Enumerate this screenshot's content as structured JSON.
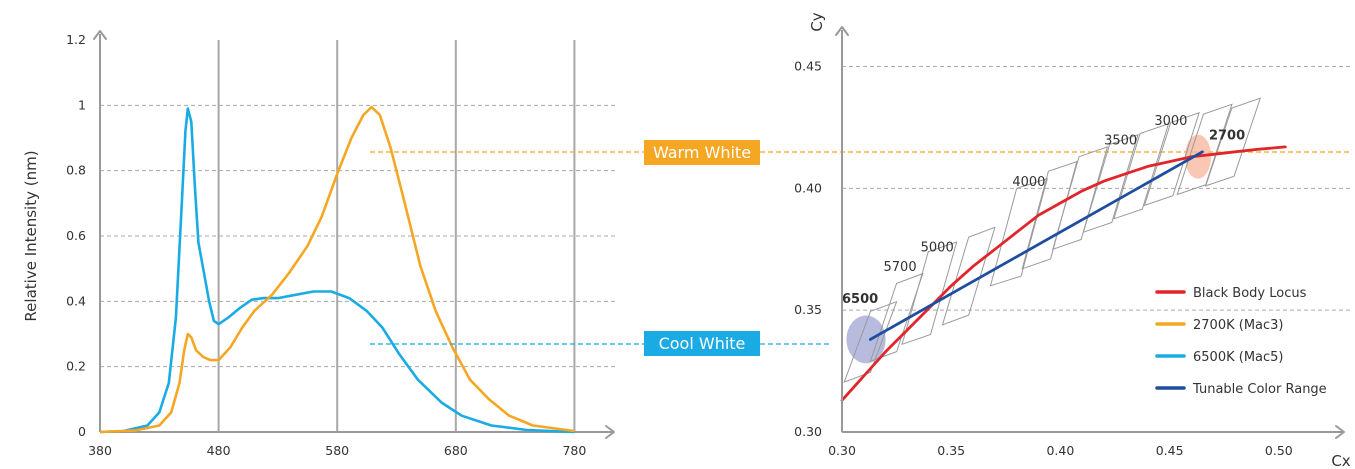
{
  "colors": {
    "warm": "#F5A623",
    "cool": "#1AABE4",
    "blackbody": "#E0262A",
    "tunable": "#1F4EA0",
    "grid": "#AAAAAA",
    "axis": "#999999",
    "warm_ellipse": "#F7B49A",
    "cool_ellipse": "#9FA6D3",
    "warm_label": "#F5A623",
    "cool_label": "#1AABE4"
  },
  "labels": {
    "warm_badge": "Warm White",
    "cool_badge": "Cool White"
  },
  "chart_data": [
    {
      "type": "line",
      "ylabel": "Relative Intensity (nm)",
      "xlabel": "",
      "x_ticks": [
        380,
        480,
        580,
        680,
        780
      ],
      "y_ticks": [
        0,
        0.2,
        0.4,
        0.6,
        0.8,
        1,
        1.2
      ],
      "y_tick_labels": [
        "0",
        "0.2",
        "0.4",
        "0.6",
        "0.8",
        "1",
        "1.2"
      ],
      "xlim": [
        380,
        810
      ],
      "ylim": [
        0,
        1.2
      ],
      "vertical_grid": [
        480,
        580,
        680,
        780
      ],
      "series": [
        {
          "color_key": "cool",
          "points": [
            [
              380,
              0
            ],
            [
              400,
              0.003
            ],
            [
              420,
              0.02
            ],
            [
              430,
              0.06
            ],
            [
              438,
              0.15
            ],
            [
              444,
              0.35
            ],
            [
              449,
              0.7
            ],
            [
              452,
              0.92
            ],
            [
              454,
              0.99
            ],
            [
              457,
              0.95
            ],
            [
              460,
              0.75
            ],
            [
              463,
              0.58
            ],
            [
              468,
              0.48
            ],
            [
              472,
              0.4
            ],
            [
              476,
              0.34
            ],
            [
              480,
              0.33
            ],
            [
              488,
              0.35
            ],
            [
              498,
              0.38
            ],
            [
              508,
              0.405
            ],
            [
              518,
              0.41
            ],
            [
              530,
              0.41
            ],
            [
              545,
              0.42
            ],
            [
              560,
              0.43
            ],
            [
              575,
              0.43
            ],
            [
              590,
              0.41
            ],
            [
              605,
              0.37
            ],
            [
              618,
              0.32
            ],
            [
              632,
              0.24
            ],
            [
              648,
              0.16
            ],
            [
              668,
              0.09
            ],
            [
              685,
              0.05
            ],
            [
              710,
              0.02
            ],
            [
              740,
              0.006
            ],
            [
              780,
              0
            ]
          ]
        },
        {
          "color_key": "warm",
          "points": [
            [
              380,
              0
            ],
            [
              410,
              0.005
            ],
            [
              430,
              0.02
            ],
            [
              440,
              0.06
            ],
            [
              447,
              0.15
            ],
            [
              451,
              0.25
            ],
            [
              454,
              0.3
            ],
            [
              457,
              0.29
            ],
            [
              461,
              0.25
            ],
            [
              467,
              0.23
            ],
            [
              473,
              0.22
            ],
            [
              480,
              0.22
            ],
            [
              490,
              0.26
            ],
            [
              500,
              0.32
            ],
            [
              510,
              0.37
            ],
            [
              525,
              0.42
            ],
            [
              540,
              0.49
            ],
            [
              555,
              0.57
            ],
            [
              567,
              0.66
            ],
            [
              580,
              0.79
            ],
            [
              592,
              0.9
            ],
            [
              602,
              0.97
            ],
            [
              609,
              0.995
            ],
            [
              616,
              0.97
            ],
            [
              625,
              0.87
            ],
            [
              637,
              0.7
            ],
            [
              650,
              0.51
            ],
            [
              663,
              0.37
            ],
            [
              677,
              0.26
            ],
            [
              692,
              0.16
            ],
            [
              708,
              0.1
            ],
            [
              725,
              0.05
            ],
            [
              745,
              0.02
            ],
            [
              780,
              0.003
            ]
          ]
        }
      ]
    },
    {
      "type": "line",
      "xlabel": "Cx",
      "ylabel": "Cy",
      "x_ticks": [
        0.3,
        0.35,
        0.4,
        0.45,
        0.5
      ],
      "x_tick_labels": [
        "0.30",
        "0.35",
        "0.40",
        "0.45",
        "0.50"
      ],
      "y_ticks": [
        0.3,
        0.35,
        0.4,
        0.45
      ],
      "y_tick_labels": [
        "0.30",
        "0.35",
        "0.40",
        "0.45"
      ],
      "xlim": [
        0.3,
        0.528
      ],
      "ylim": [
        0.3,
        0.465
      ],
      "cct_labels": [
        {
          "text": "6500",
          "x": 0.3,
          "y": 0.353,
          "color_key": "cool_label",
          "bold": true
        },
        {
          "text": "5700",
          "x": 0.319,
          "y": 0.366,
          "color_key": "",
          "bold": false
        },
        {
          "text": "5000",
          "x": 0.336,
          "y": 0.374,
          "color_key": "",
          "bold": false
        },
        {
          "text": "4000",
          "x": 0.378,
          "y": 0.401,
          "color_key": "",
          "bold": false
        },
        {
          "text": "3500",
          "x": 0.42,
          "y": 0.418,
          "color_key": "",
          "bold": false
        },
        {
          "text": "3000",
          "x": 0.443,
          "y": 0.426,
          "color_key": "",
          "bold": false
        },
        {
          "text": "2700",
          "x": 0.468,
          "y": 0.42,
          "color_key": "warm_label",
          "bold": true
        }
      ],
      "quadrangles": [
        {
          "cx": 0.313,
          "cy": 0.337,
          "hw": 0.006,
          "hh": 0.0165
        },
        {
          "cx": 0.325,
          "cy": 0.347,
          "hw": 0.006,
          "hh": 0.018
        },
        {
          "cx": 0.34,
          "cy": 0.357,
          "hw": 0.0065,
          "hh": 0.021
        },
        {
          "cx": 0.358,
          "cy": 0.364,
          "hw": 0.006,
          "hh": 0.02
        },
        {
          "cx": 0.381,
          "cy": 0.382,
          "hw": 0.007,
          "hh": 0.022
        },
        {
          "cx": 0.395,
          "cy": 0.389,
          "hw": 0.0065,
          "hh": 0.022
        },
        {
          "cx": 0.409,
          "cy": 0.396,
          "hw": 0.0065,
          "hh": 0.021
        },
        {
          "cx": 0.423,
          "cy": 0.402,
          "hw": 0.0065,
          "hh": 0.02
        },
        {
          "cx": 0.437,
          "cy": 0.407,
          "hw": 0.0065,
          "hh": 0.0195
        },
        {
          "cx": 0.451,
          "cy": 0.412,
          "hw": 0.0065,
          "hh": 0.019
        },
        {
          "cx": 0.466,
          "cy": 0.416,
          "hw": 0.0065,
          "hh": 0.0185
        },
        {
          "cx": 0.479,
          "cy": 0.419,
          "hw": 0.0065,
          "hh": 0.018
        }
      ],
      "ellipses": [
        {
          "cx": 0.311,
          "cy": 0.338,
          "rx": 0.009,
          "ry": 0.0098,
          "color_key": "cool_ellipse"
        },
        {
          "cx": 0.463,
          "cy": 0.413,
          "rx": 0.006,
          "ry": 0.009,
          "color_key": "warm_ellipse"
        }
      ],
      "series": [
        {
          "name": "Black Body Locus",
          "color_key": "blackbody",
          "points": [
            [
              0.3,
              0.313
            ],
            [
              0.31,
              0.323
            ],
            [
              0.32,
              0.333
            ],
            [
              0.33,
              0.342
            ],
            [
              0.34,
              0.351
            ],
            [
              0.35,
              0.36
            ],
            [
              0.36,
              0.368
            ],
            [
              0.37,
              0.375
            ],
            [
              0.38,
              0.382
            ],
            [
              0.39,
              0.389
            ],
            [
              0.4,
              0.394
            ],
            [
              0.41,
              0.399
            ],
            [
              0.42,
              0.403
            ],
            [
              0.43,
              0.406
            ],
            [
              0.44,
              0.409
            ],
            [
              0.45,
              0.411
            ],
            [
              0.46,
              0.413
            ],
            [
              0.47,
              0.414
            ],
            [
              0.48,
              0.415
            ],
            [
              0.49,
              0.416
            ],
            [
              0.503,
              0.417
            ]
          ]
        },
        {
          "name": "2700K (Mac3)",
          "color_key": "warm",
          "points": []
        },
        {
          "name": "6500K (Mac5)",
          "color_key": "cool",
          "points": []
        },
        {
          "name": "Tunable Color Range",
          "color_key": "tunable",
          "points": [
            [
              0.313,
              0.338
            ],
            [
              0.465,
              0.415
            ]
          ]
        }
      ]
    }
  ]
}
